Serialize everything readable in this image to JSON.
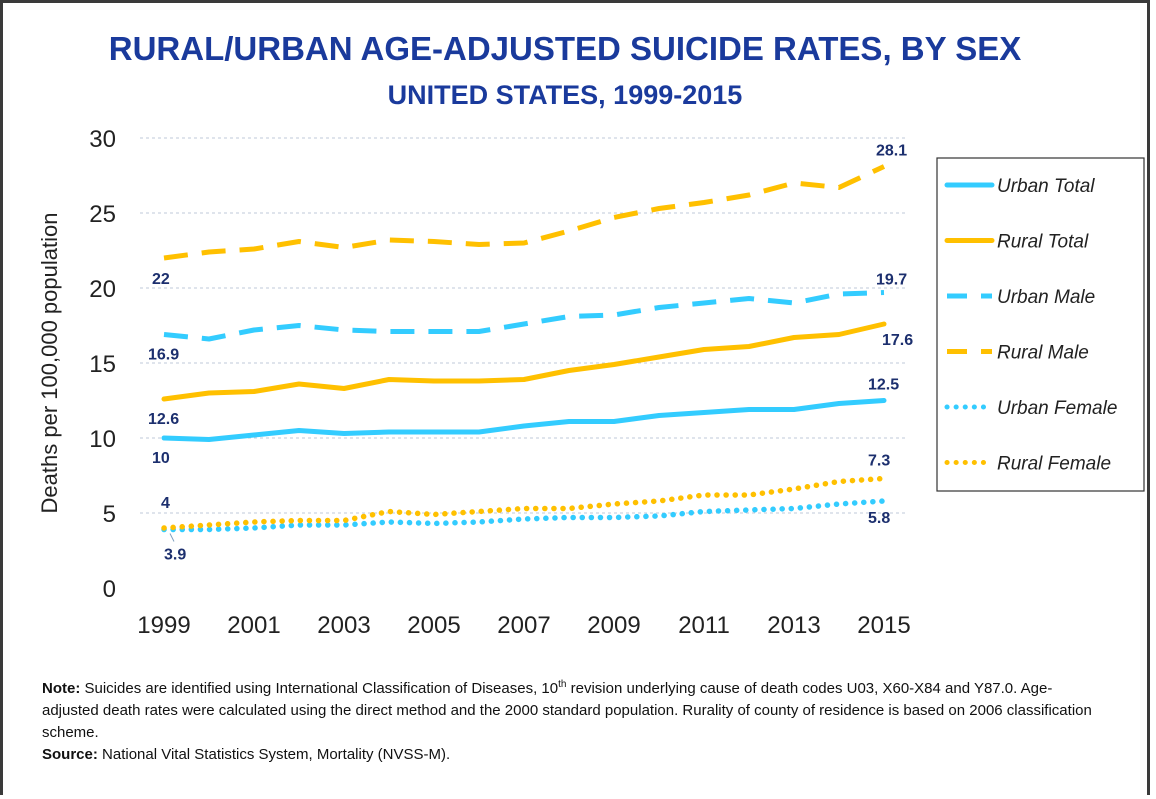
{
  "chart_data": {
    "type": "line",
    "title": "RURAL/URBAN AGE-ADJUSTED SUICIDE RATES, BY SEX",
    "subtitle": "UNITED STATES, 1999-2015",
    "ylabel": "Deaths per 100,000 population",
    "xlabel": "",
    "ylim": [
      0,
      30
    ],
    "yticks": [
      0,
      5,
      10,
      15,
      20,
      25,
      30
    ],
    "xticks": [
      1999,
      2001,
      2003,
      2005,
      2007,
      2009,
      2011,
      2013,
      2015
    ],
    "grid": true,
    "legend_position": "right",
    "x": [
      1999,
      2000,
      2001,
      2002,
      2003,
      2004,
      2005,
      2006,
      2007,
      2008,
      2009,
      2010,
      2011,
      2012,
      2013,
      2014,
      2015
    ],
    "series": [
      {
        "name": "Urban Total",
        "color": "#33ccff",
        "style": "solid",
        "values": [
          10.0,
          9.9,
          10.2,
          10.5,
          10.3,
          10.4,
          10.4,
          10.4,
          10.8,
          11.1,
          11.1,
          11.5,
          11.7,
          11.9,
          11.9,
          12.3,
          12.5
        ],
        "labels": {
          "first": "10",
          "last": "12.5"
        }
      },
      {
        "name": "Rural Total",
        "color": "#ffc000",
        "style": "solid",
        "values": [
          12.6,
          13.0,
          13.1,
          13.6,
          13.3,
          13.9,
          13.8,
          13.8,
          13.9,
          14.5,
          14.9,
          15.4,
          15.9,
          16.1,
          16.7,
          16.9,
          17.6
        ],
        "labels": {
          "first": "12.6",
          "last": "17.6"
        }
      },
      {
        "name": "Urban Male",
        "color": "#33ccff",
        "style": "dashed",
        "values": [
          16.9,
          16.6,
          17.2,
          17.5,
          17.2,
          17.1,
          17.1,
          17.1,
          17.6,
          18.1,
          18.2,
          18.7,
          19.0,
          19.3,
          19.0,
          19.6,
          19.7
        ],
        "labels": {
          "first": "16.9",
          "last": "19.7"
        }
      },
      {
        "name": "Rural Male",
        "color": "#ffc000",
        "style": "dashed",
        "values": [
          22.0,
          22.4,
          22.6,
          23.1,
          22.7,
          23.2,
          23.1,
          22.9,
          23.0,
          23.8,
          24.7,
          25.3,
          25.7,
          26.2,
          27.0,
          26.7,
          28.1
        ],
        "labels": {
          "first": "22",
          "last": "28.1"
        }
      },
      {
        "name": "Urban Female",
        "color": "#33ccff",
        "style": "dotted",
        "values": [
          3.9,
          3.9,
          4.0,
          4.2,
          4.2,
          4.4,
          4.3,
          4.4,
          4.6,
          4.7,
          4.7,
          4.8,
          5.1,
          5.2,
          5.3,
          5.6,
          5.8
        ],
        "labels": {
          "first": "3.9",
          "last": "5.8"
        }
      },
      {
        "name": "Rural Female",
        "color": "#ffc000",
        "style": "dotted",
        "values": [
          4.0,
          4.2,
          4.4,
          4.5,
          4.5,
          5.1,
          4.9,
          5.1,
          5.3,
          5.3,
          5.6,
          5.8,
          6.2,
          6.2,
          6.6,
          7.1,
          7.3
        ],
        "labels": {
          "first": "4",
          "last": "7.3"
        }
      }
    ]
  },
  "note": {
    "note_label": "Note:",
    "note_text_a": " Suicides are identified using International Classification of Diseases, 10",
    "note_sup": "th",
    "note_text_b": " revision underlying cause of death codes U03, X60-X84 and Y87.0. Age-adjusted death rates were calculated using the direct method and the 2000 standard population. Rurality of county of residence is based on 2006 classification scheme.",
    "source_label": "Source:",
    "source_text": " National Vital Statistics System, Mortality (NVSS-M)."
  }
}
